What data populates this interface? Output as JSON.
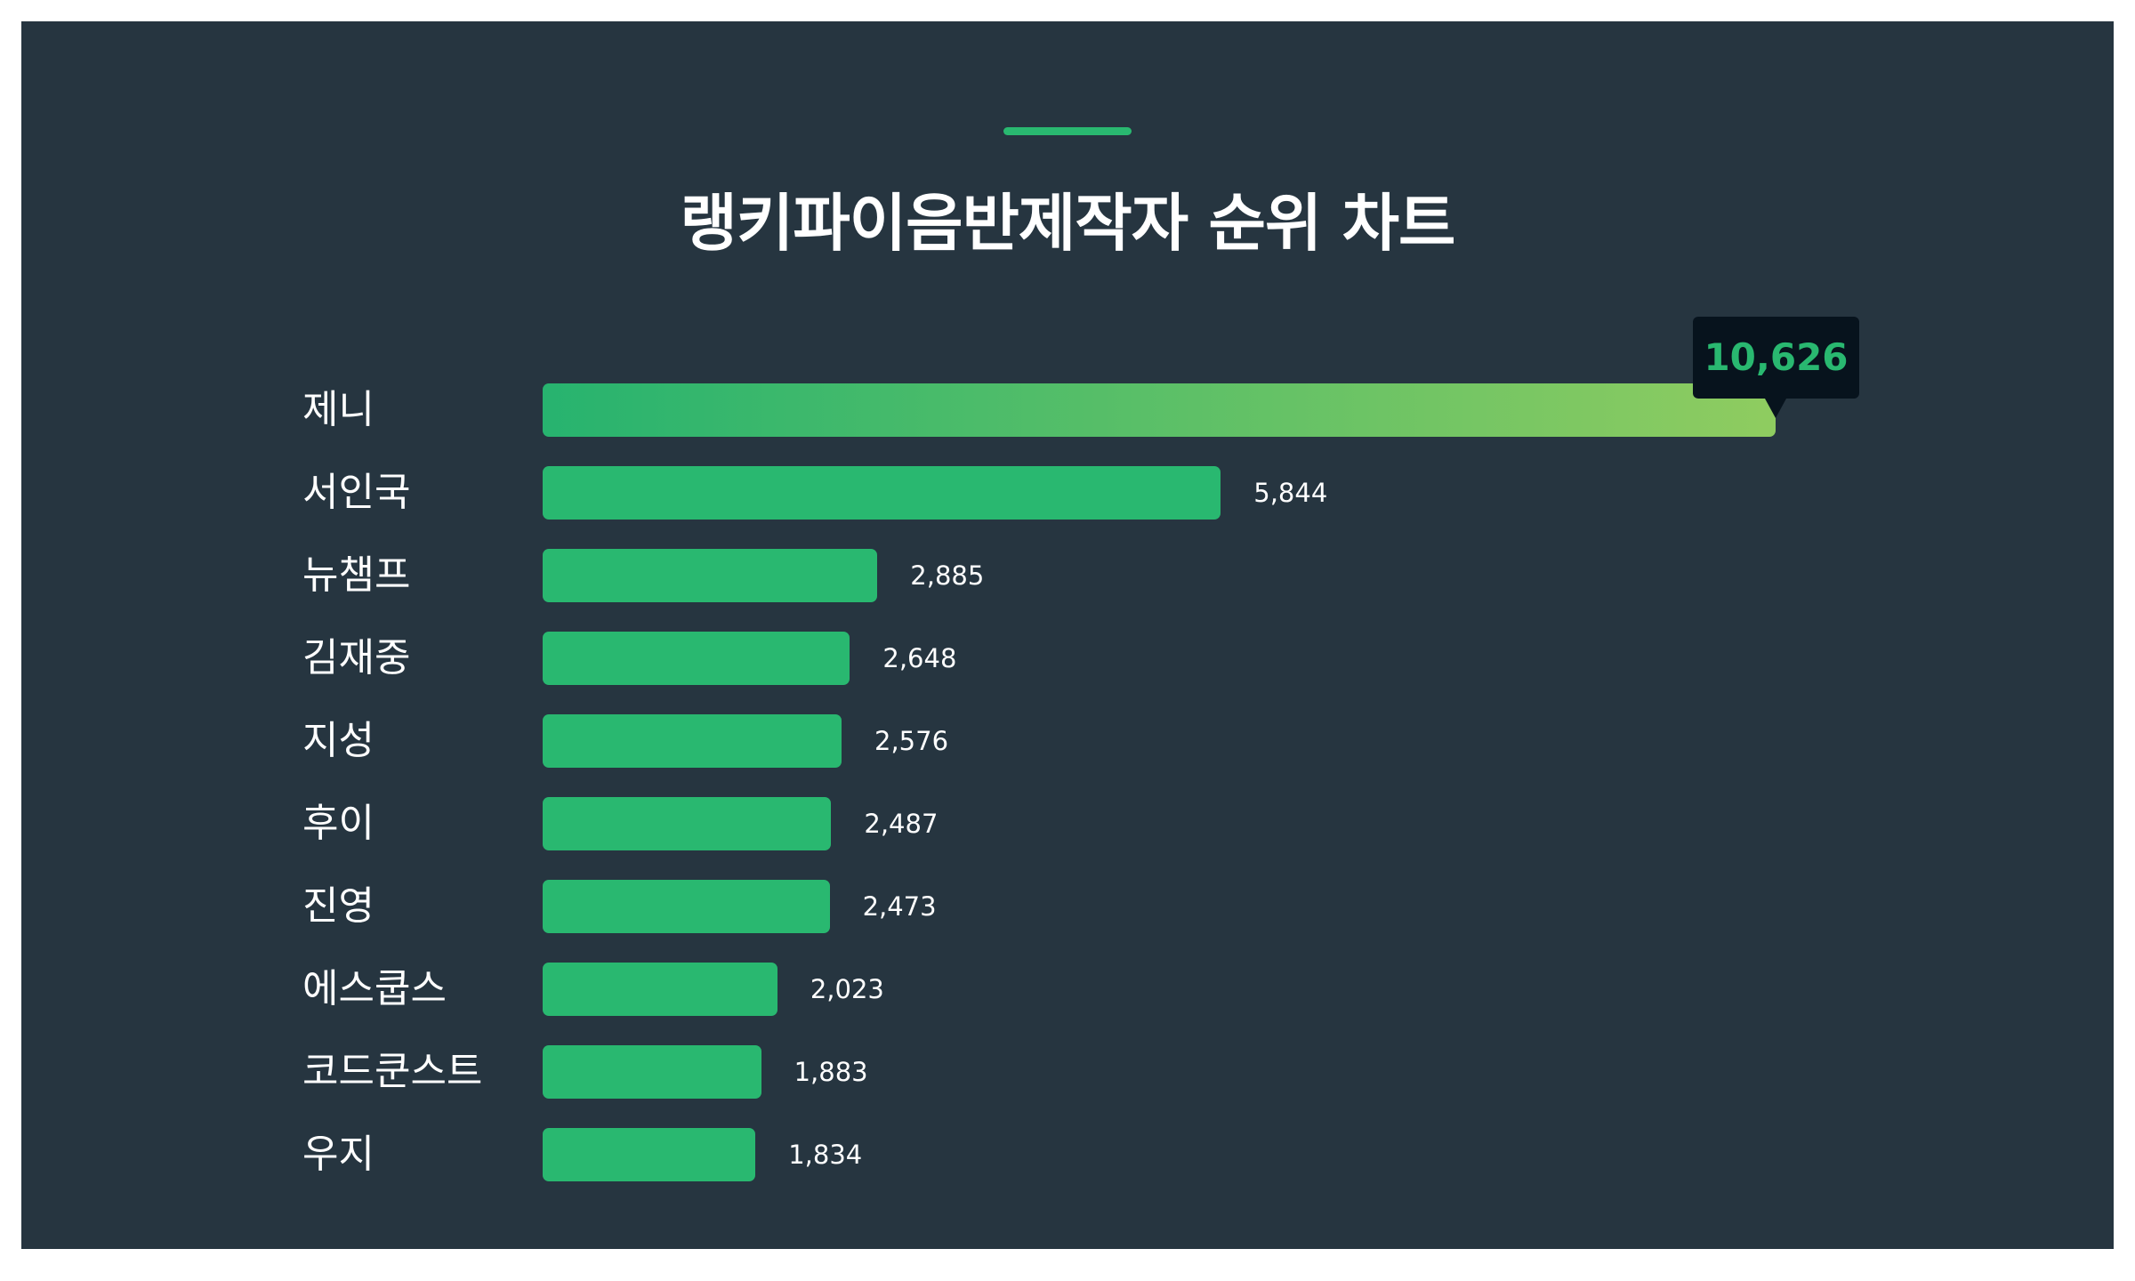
{
  "chart_data": {
    "type": "bar",
    "orientation": "horizontal",
    "title": "랭키파이음반제작자 순위 차트",
    "categories": [
      "제니",
      "서인국",
      "뉴챔프",
      "김재중",
      "지성",
      "후이",
      "진영",
      "에스쿱스",
      "코드쿤스트",
      "우지"
    ],
    "values": [
      10626,
      5844,
      2885,
      2648,
      2576,
      2487,
      2473,
      2023,
      1883,
      1834
    ],
    "value_labels": [
      "10,626",
      "5,844",
      "2,885",
      "2,648",
      "2,576",
      "2,487",
      "2,473",
      "2,023",
      "1,883",
      "1,834"
    ],
    "xlim": [
      0,
      10626
    ],
    "grid": false,
    "highlight_index": 0,
    "colors": {
      "bar": "#29b870",
      "gradient_start": "#27b36f",
      "gradient_end": "#8fcc60",
      "background": "#263540",
      "tooltip_bg": "#07131d"
    }
  }
}
